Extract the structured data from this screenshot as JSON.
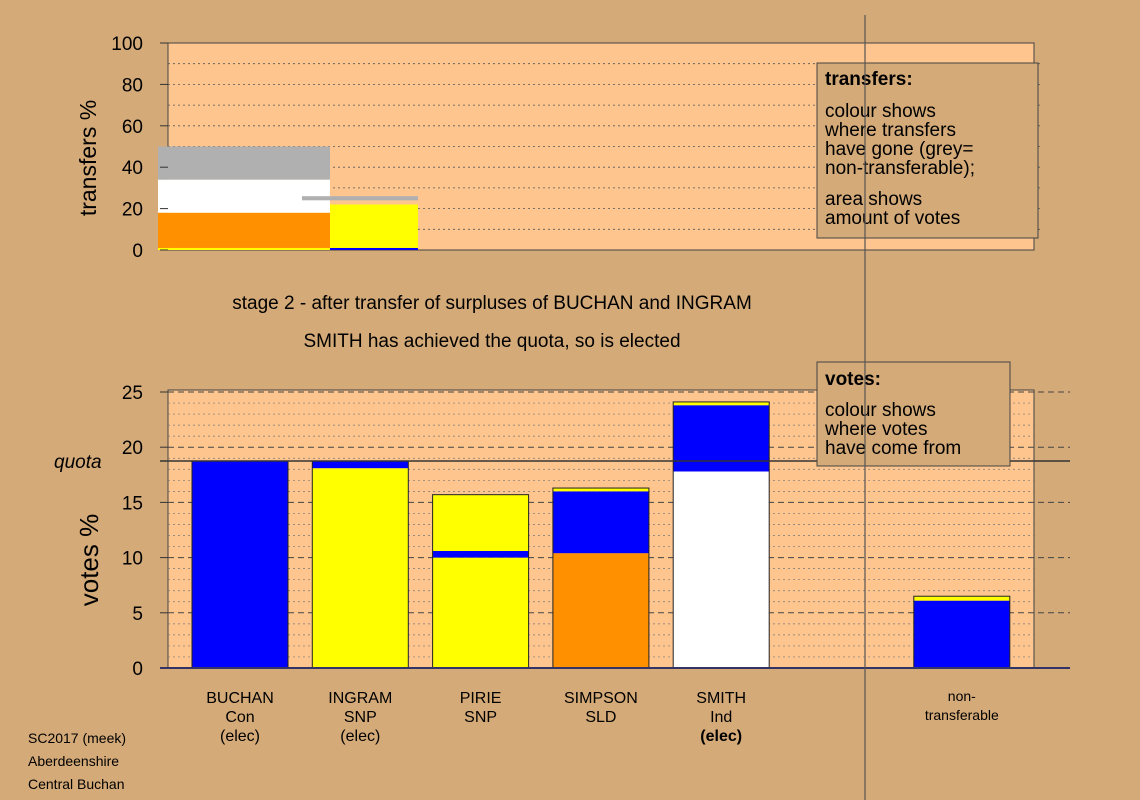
{
  "colors": {
    "page_bg": "#d4aa78",
    "plot_bg": "#fec68e",
    "legend_bg": "#d4aa78",
    "blue": "#0000ff",
    "yellow": "#ffff00",
    "orange": "#ff9000",
    "white": "#ffffff",
    "grey": "#b0b0b0",
    "axis": "#333366"
  },
  "captions": {
    "stage": "stage 2 - after transfer of surpluses of BUCHAN and INGRAM",
    "result": "SMITH has achieved the quota, so is elected"
  },
  "footer": {
    "line1": "SC2017 (meek)",
    "line2": "Aberdeenshire",
    "line3": "Central Buchan"
  },
  "chart_data": [
    {
      "type": "bar",
      "name": "transfers",
      "ylabel": "transfers %",
      "ylim": [
        0,
        100
      ],
      "yticks": [
        0,
        20,
        40,
        60,
        80,
        100
      ],
      "grid": true,
      "legend": {
        "placement": "top-right",
        "title": "transfers:",
        "lines": [
          "colour shows",
          "where transfers",
          "have gone (grey=",
          "non-transferable);"
        ],
        "lines2": [
          "area shows",
          "amount of votes"
        ]
      },
      "columns": [
        {
          "from": "BUCHAN",
          "segments": [
            {
              "color": "yellow",
              "from": 0,
              "to": 1
            },
            {
              "color": "orange",
              "from": 1,
              "to": 18
            },
            {
              "color": "white",
              "from": 18,
              "to": 34
            },
            {
              "color": "grey",
              "from": 34,
              "to": 50
            }
          ]
        },
        {
          "from": "INGRAM",
          "segments": [
            {
              "color": "blue",
              "from": 0,
              "to": 1
            },
            {
              "color": "yellow",
              "from": 1,
              "to": 22
            },
            {
              "color": "grey",
              "from": 24,
              "to": 26
            }
          ]
        }
      ]
    },
    {
      "type": "bar",
      "name": "votes",
      "ylabel": "votes %",
      "ylim": [
        0,
        25
      ],
      "yticks": [
        0,
        5,
        10,
        15,
        20,
        25
      ],
      "quota": 18.75,
      "quota_label": "quota",
      "grid": true,
      "legend": {
        "placement": "top-right",
        "title": "votes:",
        "lines": [
          "colour shows",
          "where votes",
          "have come from"
        ]
      },
      "categories": [
        {
          "lines": [
            "BUCHAN",
            "Con",
            "(elec)"
          ],
          "bold_last": false
        },
        {
          "lines": [
            "INGRAM",
            "SNP",
            "(elec)"
          ],
          "bold_last": false
        },
        {
          "lines": [
            "PIRIE",
            "SNP"
          ],
          "bold_last": false
        },
        {
          "lines": [
            "SIMPSON",
            "SLD"
          ],
          "bold_last": false
        },
        {
          "lines": [
            "SMITH",
            "Ind",
            "(elec)"
          ],
          "bold_last": true
        },
        {
          "lines": [],
          "bold_last": false
        },
        {
          "lines": [
            "non-",
            "transferable"
          ],
          "bold_last": false
        }
      ],
      "bars": [
        {
          "segments": [
            {
              "color": "blue",
              "from": 0,
              "to": 18.75
            }
          ]
        },
        {
          "segments": [
            {
              "color": "yellow",
              "from": 0,
              "to": 18.1
            },
            {
              "color": "blue",
              "from": 18.1,
              "to": 18.75
            }
          ]
        },
        {
          "segments": [
            {
              "color": "yellow",
              "from": 0,
              "to": 10.0
            },
            {
              "color": "blue",
              "from": 10.0,
              "to": 10.6
            },
            {
              "color": "yellow",
              "from": 10.6,
              "to": 15.7
            }
          ]
        },
        {
          "segments": [
            {
              "color": "orange",
              "from": 0,
              "to": 10.4
            },
            {
              "color": "blue",
              "from": 10.4,
              "to": 16.0
            },
            {
              "color": "yellow",
              "from": 16.0,
              "to": 16.3
            }
          ]
        },
        {
          "segments": [
            {
              "color": "white",
              "from": 0,
              "to": 17.8
            },
            {
              "color": "blue",
              "from": 17.8,
              "to": 23.8
            },
            {
              "color": "yellow",
              "from": 23.8,
              "to": 24.1
            }
          ]
        },
        {
          "segments": []
        },
        {
          "segments": [
            {
              "color": "blue",
              "from": 0,
              "to": 6.1
            },
            {
              "color": "yellow",
              "from": 6.1,
              "to": 6.5
            }
          ]
        }
      ]
    }
  ]
}
